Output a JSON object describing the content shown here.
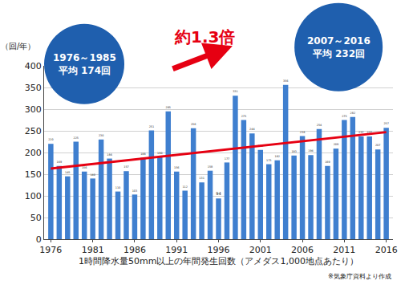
{
  "chart_data": {
    "type": "bar",
    "y_label": "（回/年）",
    "x_label": "1時間降水量50mm以上の年間発生回数（アメダス1,000地点あたり）",
    "note": "※気象庁資料より作成",
    "x": [
      1976,
      1977,
      1978,
      1979,
      1980,
      1981,
      1982,
      1983,
      1984,
      1985,
      1986,
      1987,
      1988,
      1989,
      1990,
      1991,
      1992,
      1993,
      1994,
      1995,
      1996,
      1997,
      1998,
      1999,
      2000,
      2001,
      2002,
      2003,
      2004,
      2005,
      2006,
      2007,
      2008,
      2009,
      2010,
      2011,
      2012,
      2013,
      2014,
      2015,
      2016
    ],
    "values": [
      220,
      169,
      145,
      225,
      156,
      140,
      230,
      186,
      110,
      157,
      103,
      188,
      251,
      190,
      295,
      156,
      112,
      256,
      131,
      158,
      94,
      177,
      331,
      275,
      244,
      206,
      173,
      182,
      356,
      193,
      238,
      194,
      254,
      169,
      209,
      275,
      282,
      237,
      237,
      207,
      257
    ],
    "color": "#3f7fcf",
    "data_labels": true,
    "xlim": [
      1975.2,
      2016.8
    ],
    "xticks": [
      1976,
      1981,
      1986,
      1991,
      1996,
      2001,
      2006,
      2011,
      2016
    ],
    "ylim": [
      0,
      400
    ],
    "yticks": [
      0,
      50,
      100,
      150,
      200,
      250,
      300,
      350,
      400
    ],
    "grid": true,
    "trend_line": {
      "type": "line",
      "color": "#e60012",
      "x": [
        1976,
        2016
      ],
      "values": [
        163,
        247
      ]
    },
    "annotations": [
      {
        "text": "1976～1985\n平均 174回"
      },
      {
        "text": "2007～2016\n平均 232回"
      },
      {
        "text": "約1.3倍"
      }
    ]
  }
}
